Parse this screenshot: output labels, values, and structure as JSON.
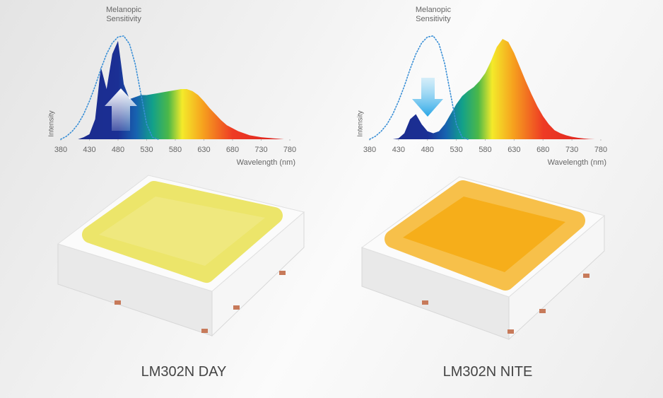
{
  "chart_data": [
    {
      "type": "area",
      "caption": "LM302N DAY",
      "xlabel": "Wavelength (nm)",
      "ylabel": "Intensity",
      "xlim": [
        380,
        780
      ],
      "xticks": [
        380,
        430,
        480,
        530,
        580,
        630,
        680,
        730,
        780
      ],
      "ylim": [
        0,
        1.05
      ],
      "x": [
        380,
        390,
        400,
        410,
        420,
        430,
        440,
        450,
        460,
        470,
        480,
        490,
        500,
        510,
        520,
        530,
        540,
        550,
        560,
        570,
        580,
        590,
        600,
        610,
        620,
        630,
        640,
        650,
        660,
        670,
        680,
        690,
        700,
        710,
        720,
        730,
        740,
        750,
        760,
        770,
        780
      ],
      "series": [
        {
          "color": "spectrum",
          "values": [
            0,
            0,
            0,
            0,
            0.02,
            0.05,
            0.2,
            0.72,
            0.5,
            0.85,
            0.98,
            0.55,
            0.4,
            0.42,
            0.44,
            0.44,
            0.45,
            0.46,
            0.47,
            0.48,
            0.49,
            0.5,
            0.5,
            0.48,
            0.44,
            0.38,
            0.31,
            0.25,
            0.19,
            0.14,
            0.11,
            0.08,
            0.06,
            0.04,
            0.03,
            0.02,
            0.015,
            0.01,
            0.005,
            0,
            0
          ]
        },
        {
          "name": "Melanopic Sensitivity",
          "color": "#3a8fd6",
          "style": "dotted",
          "values": [
            0,
            0.03,
            0.08,
            0.15,
            0.25,
            0.38,
            0.53,
            0.7,
            0.85,
            0.96,
            1.02,
            1.03,
            0.95,
            0.75,
            0.45,
            0.15,
            0.02,
            0,
            null,
            null,
            null,
            null,
            null,
            null,
            null,
            null,
            null,
            null,
            null,
            null,
            null,
            null,
            null,
            null,
            null,
            null,
            null,
            null,
            null,
            null,
            null
          ]
        }
      ]
    },
    {
      "type": "area",
      "caption": "LM302N NITE",
      "xlabel": "Wavelength (nm)",
      "ylabel": "Intensity",
      "xlim": [
        380,
        780
      ],
      "xticks": [
        380,
        430,
        480,
        530,
        580,
        630,
        680,
        730,
        780
      ],
      "ylim": [
        0,
        1.05
      ],
      "x": [
        380,
        390,
        400,
        410,
        420,
        430,
        440,
        450,
        460,
        470,
        480,
        490,
        500,
        510,
        520,
        530,
        540,
        550,
        560,
        570,
        580,
        590,
        600,
        610,
        620,
        630,
        640,
        650,
        660,
        670,
        680,
        690,
        700,
        710,
        720,
        730,
        740,
        750,
        760,
        770,
        780
      ],
      "series": [
        {
          "color": "spectrum",
          "values": [
            0,
            0,
            0,
            0,
            0,
            0.01,
            0.06,
            0.2,
            0.25,
            0.15,
            0.08,
            0.06,
            0.08,
            0.15,
            0.25,
            0.35,
            0.43,
            0.48,
            0.52,
            0.58,
            0.66,
            0.78,
            0.92,
            1.0,
            0.97,
            0.86,
            0.72,
            0.58,
            0.45,
            0.33,
            0.23,
            0.15,
            0.09,
            0.06,
            0.04,
            0.025,
            0.015,
            0.008,
            0.003,
            0,
            0
          ]
        },
        {
          "name": "Melanopic Sensitivity",
          "color": "#3a8fd6",
          "style": "dotted",
          "values": [
            0,
            0.03,
            0.08,
            0.15,
            0.25,
            0.38,
            0.53,
            0.7,
            0.85,
            0.96,
            1.02,
            1.03,
            0.95,
            0.75,
            0.45,
            0.15,
            0.02,
            0,
            null,
            null,
            null,
            null,
            null,
            null,
            null,
            null,
            null,
            null,
            null,
            null,
            null,
            null,
            null,
            null,
            null,
            null,
            null,
            null,
            null,
            null,
            null
          ]
        }
      ]
    }
  ]
}
